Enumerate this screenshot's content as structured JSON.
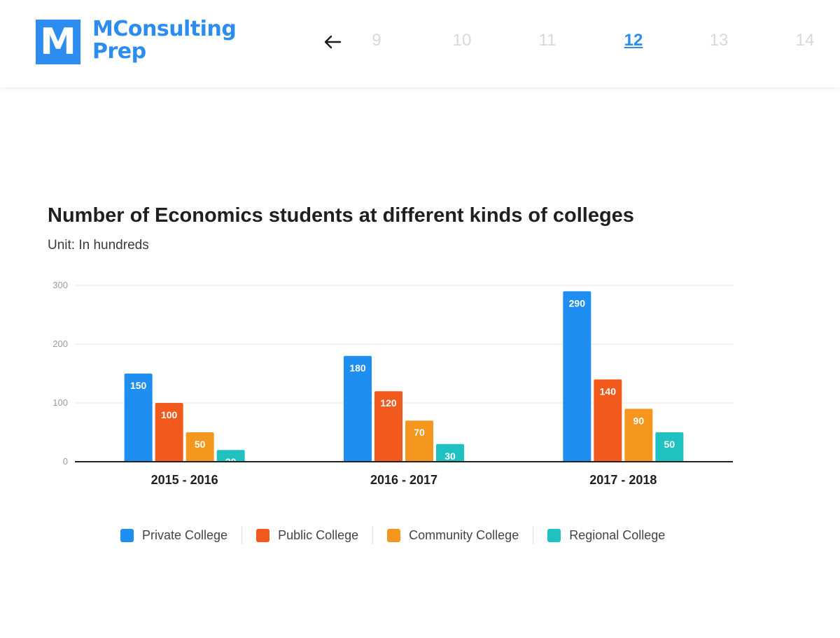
{
  "header": {
    "logo_letter": "M",
    "logo_line1": "MConsulting",
    "logo_line2": "Prep",
    "pages": [
      "9",
      "10",
      "11",
      "12",
      "13",
      "14"
    ],
    "active_page": "12",
    "icons": {
      "logo": "m-logo-icon",
      "back": "arrow-left-icon"
    }
  },
  "colors": {
    "brand": "#2d8cf0",
    "private": "#1f8ef1",
    "public": "#f25a1d",
    "community": "#f5961f",
    "regional": "#1fc2c0"
  },
  "chart_data": {
    "type": "bar",
    "title": "Number of Economics students at different kinds of colleges",
    "subtitle": "Unit: In hundreds",
    "categories": [
      "2015 - 2016",
      "2016 - 2017",
      "2017 - 2018"
    ],
    "series": [
      {
        "name": "Private College",
        "values": [
          150,
          180,
          290
        ],
        "color": "#1f8ef1"
      },
      {
        "name": "Public College",
        "values": [
          100,
          120,
          140
        ],
        "color": "#f25a1d"
      },
      {
        "name": "Community College",
        "values": [
          50,
          70,
          90
        ],
        "color": "#f5961f"
      },
      {
        "name": "Regional College",
        "values": [
          20,
          30,
          50
        ],
        "color": "#1fc2c0"
      }
    ],
    "yticks": [
      0,
      100,
      200,
      300
    ],
    "ylim": [
      0,
      300
    ],
    "grid": true,
    "legend": "bottom"
  }
}
